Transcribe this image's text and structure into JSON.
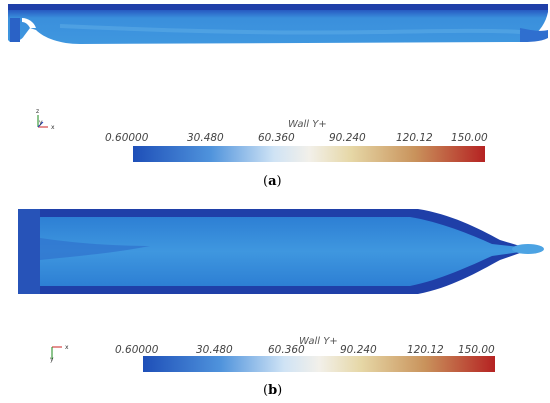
{
  "colors": {
    "dark_blue": "#1f3fa8",
    "mid_blue": "#2f86d8",
    "light_blue": "#56a6e4"
  },
  "panels": [
    {
      "caption_letter": "a",
      "scale": {
        "title": "Wall Y+",
        "ticks": [
          "0.60000",
          "30.480",
          "60.360",
          "90.240",
          "120.12",
          "150.00"
        ]
      },
      "axis": [
        "z",
        "y",
        "x"
      ]
    },
    {
      "caption_letter": "b",
      "scale": {
        "title": "Wall Y+",
        "ticks": [
          "0.60000",
          "30.480",
          "60.360",
          "90.240",
          "120.12",
          "150.00"
        ]
      },
      "axis": [
        "x",
        "y"
      ]
    }
  ]
}
